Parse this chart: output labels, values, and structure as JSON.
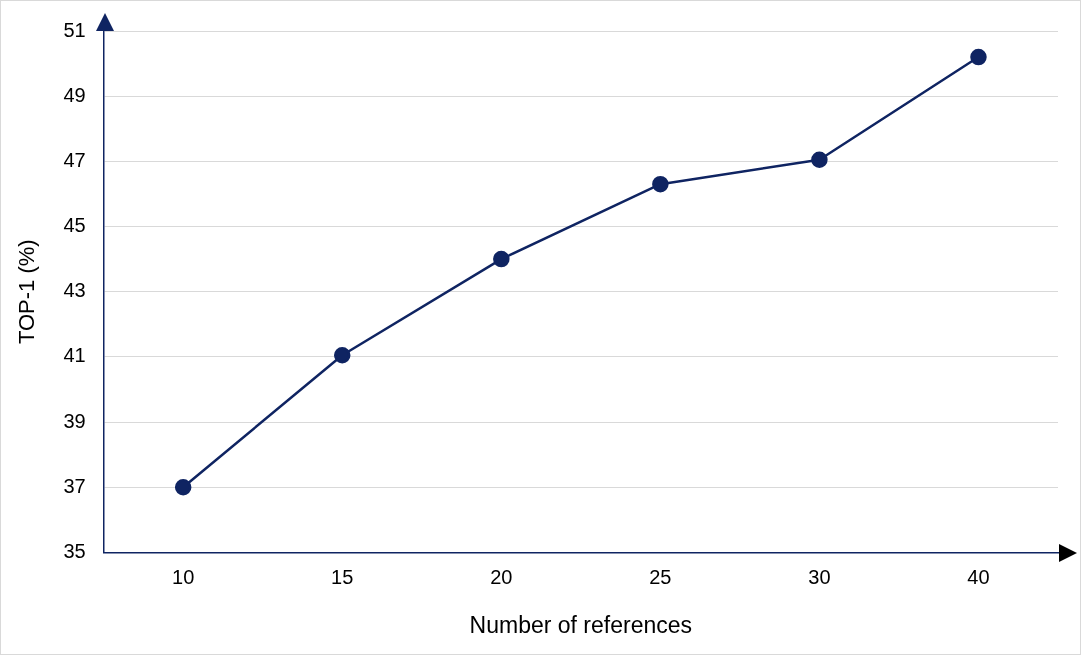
{
  "chart_data": {
    "type": "line",
    "xlabel": "Number of references",
    "ylabel": "TOP-1 (%)",
    "categories": [
      "10",
      "15",
      "20",
      "25",
      "30",
      "40"
    ],
    "series": [
      {
        "color": "#0f2462",
        "values": [
          37,
          41.05,
          44,
          46.3,
          47.05,
          50.2
        ]
      }
    ],
    "ylim": [
      35,
      51
    ],
    "yticks": [
      35,
      37,
      39,
      41,
      43,
      45,
      47,
      49,
      51
    ],
    "grid": "y",
    "legend": false,
    "marker": "circle",
    "line_style": "solid"
  }
}
